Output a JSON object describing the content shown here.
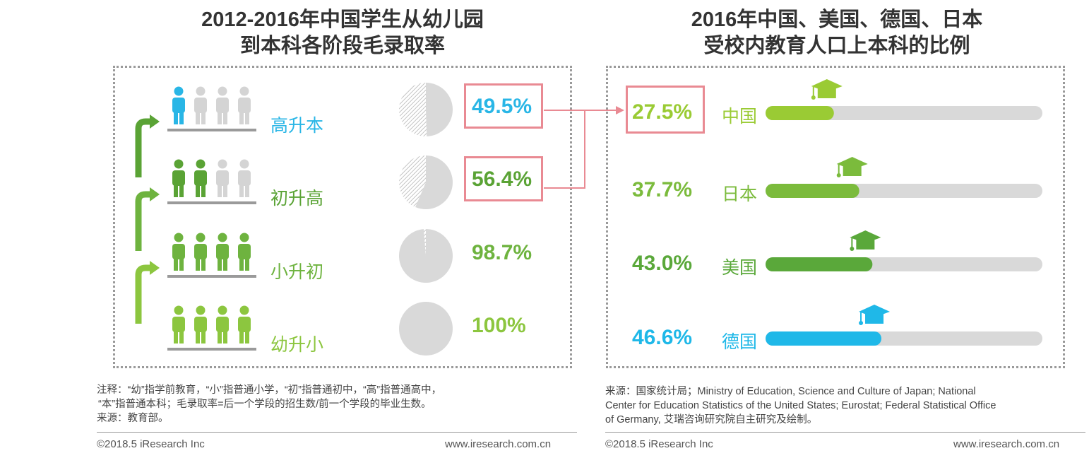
{
  "left_title": {
    "line1": "2012-2016年中国学生从幼儿园",
    "line2": "到本科各阶段毛录取率"
  },
  "right_title": {
    "line1": "2016年中国、美国、德国、日本",
    "line2": "受校内教育人口上本科的比例"
  },
  "colors": {
    "stage_high": "#29b6e6",
    "stage_mid": "#5aa335",
    "stage_low": "#6eb33f",
    "stage_base": "#8cc63f",
    "pie_gray": "#d9d9d9",
    "highlight_box": "#e98a93",
    "china": "#9acb34",
    "japan": "#7bbb3c",
    "usa": "#5aa83a",
    "germany": "#1fb8e8",
    "track": "#d9d9d9"
  },
  "chart_data": [
    {
      "type": "pie",
      "title": "2012-2016年中国学生从幼儿园到本科各阶段毛录取率",
      "categories": [
        "高升本",
        "初升高",
        "小升初",
        "幼升小"
      ],
      "values": [
        49.5,
        56.4,
        98.7,
        100
      ],
      "labels": [
        "49.5%",
        "56.4%",
        "98.7%",
        "100%"
      ],
      "highlighted": [
        "高升本",
        "初升高"
      ]
    },
    {
      "type": "bar",
      "title": "2016年中国、美国、德国、日本受校内教育人口上本科的比例",
      "categories": [
        "中国",
        "日本",
        "美国",
        "德国"
      ],
      "values": [
        27.5,
        37.7,
        43.0,
        46.6
      ],
      "labels": [
        "27.5%",
        "37.7%",
        "43.0%",
        "46.6%"
      ],
      "ylim": [
        0,
        100
      ],
      "highlighted": [
        "中国"
      ]
    }
  ],
  "left_note": {
    "line1": "注释：“幼”指学前教育，“小”指普通小学，“初”指普通初中，“高”指普通高中，",
    "line2": "“本”指普通本科；毛录取率=后一个学段的招生数/前一个学段的毕业生数。",
    "line3": "来源：教育部。"
  },
  "right_note": {
    "line1": "来源：国家统计局；Ministry of Education, Science and Culture of Japan; National",
    "line2": "Center for Education Statistics of the United States; Eurostat; Federal Statistical Office",
    "line3": "of Germany, 艾瑞咨询研究院自主研究及绘制。"
  },
  "footer": {
    "copyright": "©2018.5 iResearch Inc",
    "website": "www.iresearch.com.cn"
  }
}
